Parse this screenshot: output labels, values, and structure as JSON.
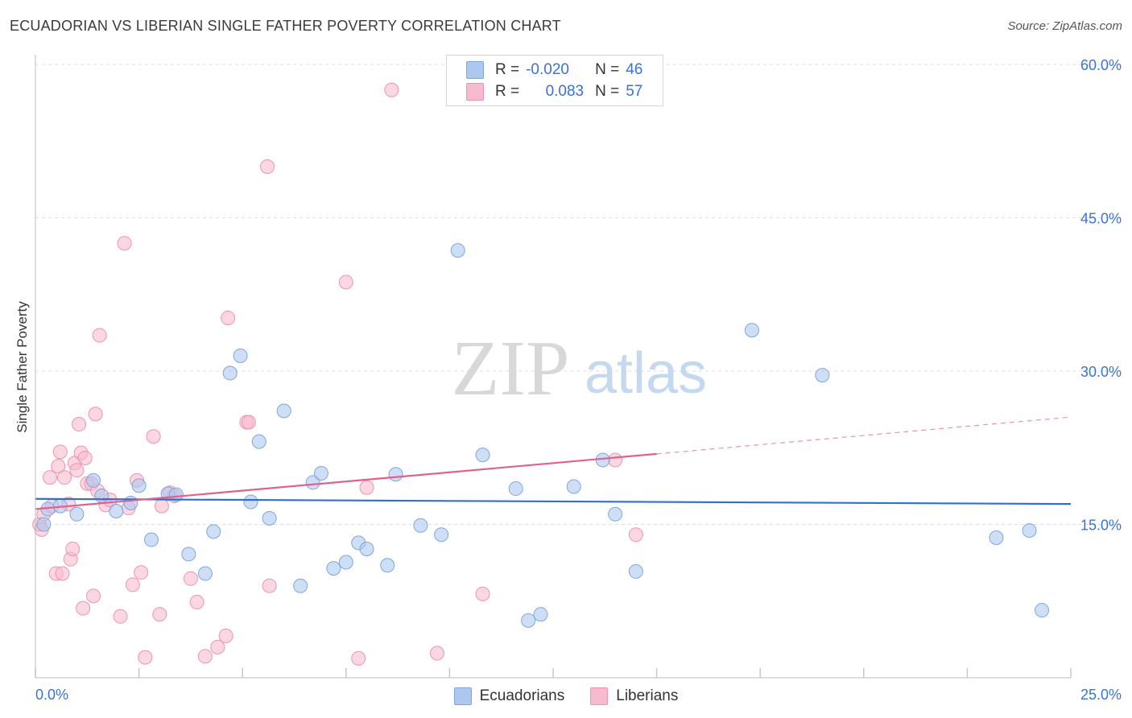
{
  "header": {
    "title": "ECUADORIAN VS LIBERIAN SINGLE FATHER POVERTY CORRELATION CHART",
    "source": "Source: ZipAtlas.com"
  },
  "watermark": {
    "zip": "ZIP",
    "atlas": "atlas"
  },
  "stats_legend": {
    "rows": [
      {
        "r_label": "R =",
        "r_value": "-0.020",
        "n_label": "N =",
        "n_value": "46",
        "series": "Ecuadorians"
      },
      {
        "r_label": "R =",
        "r_value": "0.083",
        "n_label": "N =",
        "n_value": "57",
        "series": "Liberians"
      }
    ]
  },
  "colors": {
    "blue_fill": "#adc8ee",
    "blue_stroke": "#7fa6e0",
    "blue_line": "#2f6fd0",
    "pink_fill": "#f6bccd",
    "pink_stroke": "#ee93b0",
    "pink_line": "#e2618c",
    "tick_label": "#3a72d8",
    "grid": "#dcdcdc"
  },
  "chart_data": {
    "type": "scatter",
    "title": "ECUADORIAN VS LIBERIAN SINGLE FATHER POVERTY CORRELATION CHART",
    "xlabel": "",
    "ylabel": "Single Father Poverty",
    "xlim": [
      0,
      25
    ],
    "ylim": [
      0,
      60
    ],
    "y_ticks": [
      15,
      30,
      45,
      60
    ],
    "y_tick_labels": [
      "15.0%",
      "30.0%",
      "45.0%",
      "60.0%"
    ],
    "x_tick_labels": {
      "min": "0.0%",
      "max": "25.0%"
    },
    "legend": [
      "Ecuadorians",
      "Liberians"
    ],
    "series": [
      {
        "name": "Ecuadorians",
        "r": -0.02,
        "n": 46,
        "trend": {
          "x0": 0,
          "y0": 17.5,
          "x1": 25,
          "y1": 17.0
        },
        "points": [
          [
            0.2,
            15.0
          ],
          [
            0.3,
            16.5
          ],
          [
            0.6,
            16.8
          ],
          [
            1.0,
            16.0
          ],
          [
            1.4,
            19.3
          ],
          [
            1.6,
            17.8
          ],
          [
            1.95,
            16.3
          ],
          [
            2.3,
            17.1
          ],
          [
            2.5,
            18.8
          ],
          [
            2.8,
            13.5
          ],
          [
            3.2,
            18.0
          ],
          [
            3.4,
            17.9
          ],
          [
            3.7,
            12.1
          ],
          [
            4.1,
            10.2
          ],
          [
            4.3,
            14.3
          ],
          [
            4.7,
            29.8
          ],
          [
            4.95,
            31.5
          ],
          [
            5.2,
            17.2
          ],
          [
            5.4,
            23.1
          ],
          [
            5.65,
            15.6
          ],
          [
            6.0,
            26.1
          ],
          [
            6.4,
            9.0
          ],
          [
            6.7,
            19.1
          ],
          [
            6.9,
            20.0
          ],
          [
            7.2,
            10.7
          ],
          [
            7.5,
            11.3
          ],
          [
            7.8,
            13.2
          ],
          [
            8.0,
            12.6
          ],
          [
            8.5,
            11.0
          ],
          [
            8.7,
            19.9
          ],
          [
            9.3,
            14.9
          ],
          [
            9.8,
            14.0
          ],
          [
            10.2,
            41.8
          ],
          [
            10.8,
            21.8
          ],
          [
            11.6,
            18.5
          ],
          [
            11.9,
            5.6
          ],
          [
            12.2,
            6.2
          ],
          [
            13.0,
            18.7
          ],
          [
            13.7,
            21.3
          ],
          [
            14.0,
            16.0
          ],
          [
            14.5,
            10.4
          ],
          [
            17.3,
            34.0
          ],
          [
            19.0,
            29.6
          ],
          [
            23.2,
            13.7
          ],
          [
            24.0,
            14.4
          ],
          [
            24.3,
            6.6
          ]
        ]
      },
      {
        "name": "Liberians",
        "r": 0.083,
        "n": 57,
        "trend": {
          "x0": 0,
          "y0": 16.5,
          "x1": 15,
          "y1": 21.9
        },
        "trend_dashed": {
          "x0": 15,
          "y0": 21.9,
          "x1": 25,
          "y1": 25.5
        },
        "points": [
          [
            0.1,
            15.0
          ],
          [
            0.15,
            14.5
          ],
          [
            0.2,
            16.0
          ],
          [
            0.35,
            19.6
          ],
          [
            0.4,
            16.8
          ],
          [
            0.5,
            10.2
          ],
          [
            0.55,
            20.7
          ],
          [
            0.6,
            22.1
          ],
          [
            0.65,
            10.2
          ],
          [
            0.7,
            19.6
          ],
          [
            0.8,
            17.0
          ],
          [
            0.85,
            11.6
          ],
          [
            0.9,
            12.6
          ],
          [
            0.95,
            21.0
          ],
          [
            1.0,
            20.3
          ],
          [
            1.05,
            24.8
          ],
          [
            1.1,
            22.0
          ],
          [
            1.15,
            6.8
          ],
          [
            1.2,
            21.5
          ],
          [
            1.25,
            19.0
          ],
          [
            1.35,
            19.0
          ],
          [
            1.4,
            8.0
          ],
          [
            1.45,
            25.8
          ],
          [
            1.5,
            18.3
          ],
          [
            1.55,
            33.5
          ],
          [
            1.7,
            16.9
          ],
          [
            1.8,
            17.4
          ],
          [
            2.05,
            6.0
          ],
          [
            2.15,
            42.5
          ],
          [
            2.25,
            16.6
          ],
          [
            2.35,
            9.1
          ],
          [
            2.45,
            19.3
          ],
          [
            2.55,
            10.3
          ],
          [
            2.65,
            2.0
          ],
          [
            2.85,
            23.6
          ],
          [
            3.0,
            6.2
          ],
          [
            3.05,
            16.8
          ],
          [
            3.25,
            18.1
          ],
          [
            3.35,
            17.8
          ],
          [
            3.75,
            9.7
          ],
          [
            3.9,
            7.4
          ],
          [
            4.1,
            2.1
          ],
          [
            4.4,
            3.0
          ],
          [
            4.6,
            4.1
          ],
          [
            4.65,
            35.2
          ],
          [
            5.1,
            25.0
          ],
          [
            5.15,
            25.0
          ],
          [
            5.6,
            50.0
          ],
          [
            5.65,
            9.0
          ],
          [
            7.5,
            38.7
          ],
          [
            7.8,
            1.9
          ],
          [
            8.0,
            18.6
          ],
          [
            8.6,
            57.5
          ],
          [
            9.7,
            2.4
          ],
          [
            10.8,
            8.2
          ],
          [
            14.0,
            21.3
          ],
          [
            14.5,
            14.0
          ]
        ]
      }
    ]
  }
}
